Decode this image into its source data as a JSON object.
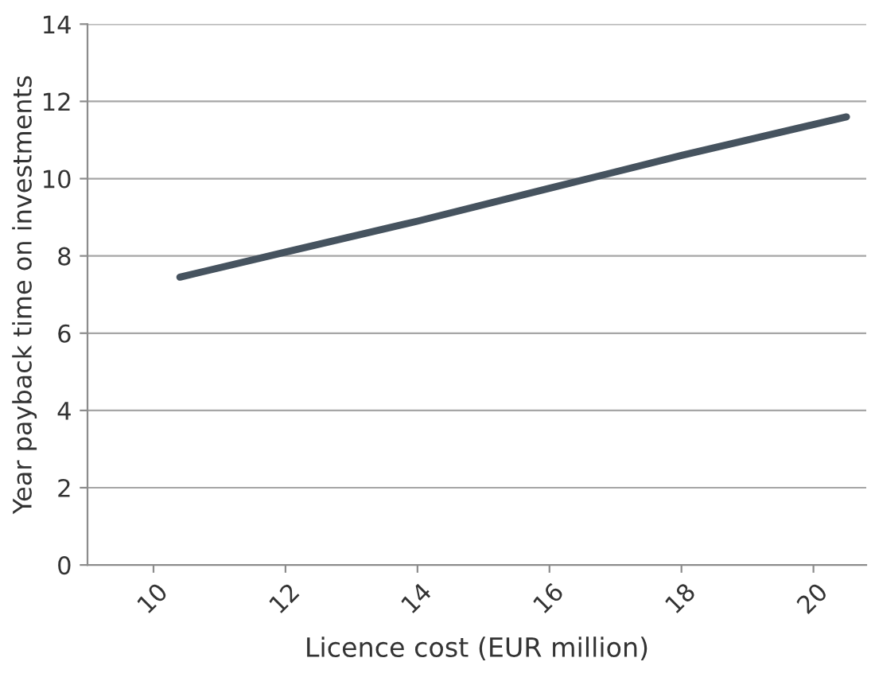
{
  "chart_data": {
    "type": "line",
    "xlabel": "Licence cost (EUR million)",
    "ylabel": "Year payback time on investments",
    "x": [
      10.4,
      12,
      14,
      16,
      18,
      20.5
    ],
    "series": [
      {
        "color": "#46535f",
        "values": [
          7.45,
          8.1,
          8.9,
          9.75,
          10.6,
          11.6
        ]
      }
    ],
    "xlim": [
      9,
      20.8
    ],
    "xticks": [
      10,
      12,
      14,
      16,
      18,
      20
    ],
    "ylim": [
      0,
      14
    ],
    "yticks": [
      0,
      2,
      4,
      6,
      8,
      10,
      12,
      14
    ],
    "grid": "y",
    "marker": "none",
    "line_style": "solid"
  }
}
